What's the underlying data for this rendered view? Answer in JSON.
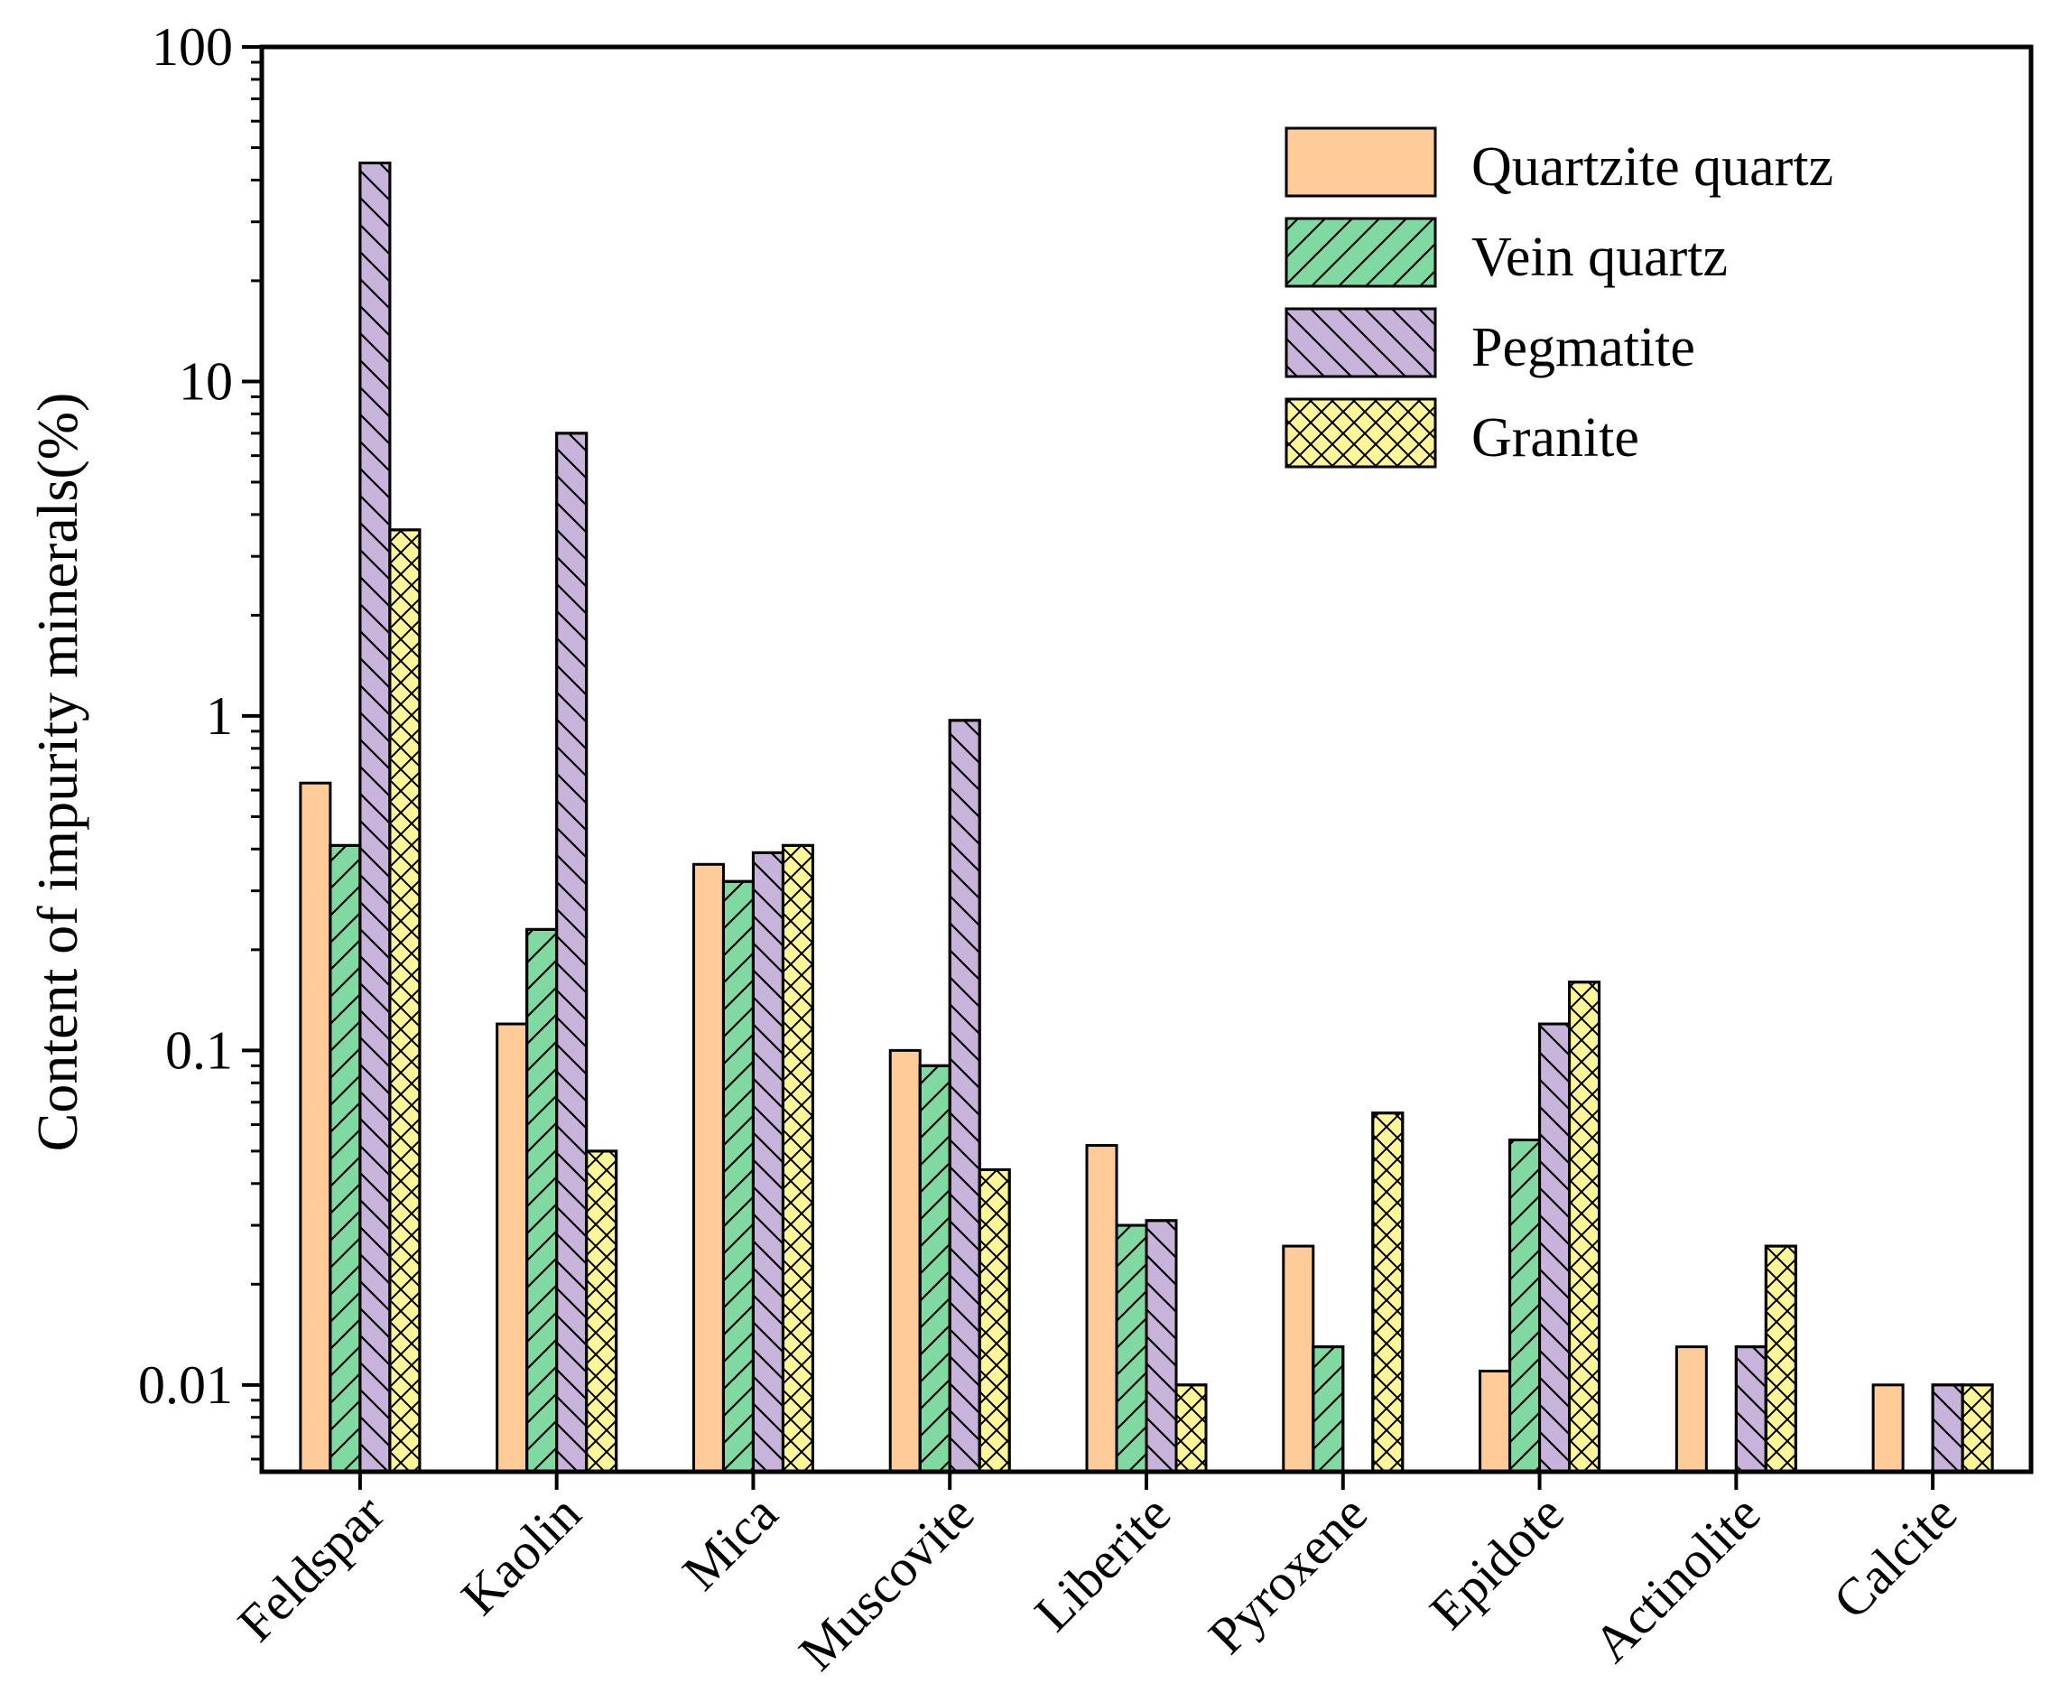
{
  "chart_data": {
    "type": "bar",
    "y_scale": "log",
    "ylabel": "Content of impurity minerals(%)",
    "xlabel": "",
    "title": "",
    "ylim": [
      0.0055,
      100
    ],
    "y_ticks": [
      {
        "value": 0.01,
        "label": "0.01"
      },
      {
        "value": 0.1,
        "label": "0.1"
      },
      {
        "value": 1,
        "label": "1"
      },
      {
        "value": 10,
        "label": "10"
      },
      {
        "value": 100,
        "label": "100"
      }
    ],
    "categories": [
      "Feldspar",
      "Kaolin",
      "Mica",
      "Muscovite",
      "Liberite",
      "Pyroxene",
      "Epidote",
      "Actinolite",
      "Calcite"
    ],
    "series": [
      {
        "name": "Quartzite quartz",
        "color": "#FFCC99",
        "pattern": "none",
        "values": [
          0.63,
          0.12,
          0.36,
          0.1,
          0.052,
          0.026,
          0.011,
          0.013,
          0.01
        ]
      },
      {
        "name": "Vein quartz",
        "color": "#80D9A0",
        "pattern": "forward",
        "values": [
          0.41,
          0.23,
          0.32,
          0.09,
          0.03,
          0.013,
          0.054,
          null,
          null
        ]
      },
      {
        "name": "Pegmatite",
        "color": "#C8B3DB",
        "pattern": "backward",
        "values": [
          45,
          7.0,
          0.39,
          0.97,
          0.031,
          null,
          0.12,
          0.013,
          0.01
        ]
      },
      {
        "name": "Granite",
        "color": "#FFF599",
        "pattern": "cross",
        "values": [
          3.6,
          0.05,
          0.41,
          0.044,
          0.01,
          0.065,
          0.16,
          0.026,
          0.01
        ]
      }
    ],
    "legend_position": "top-right",
    "grid": false
  }
}
